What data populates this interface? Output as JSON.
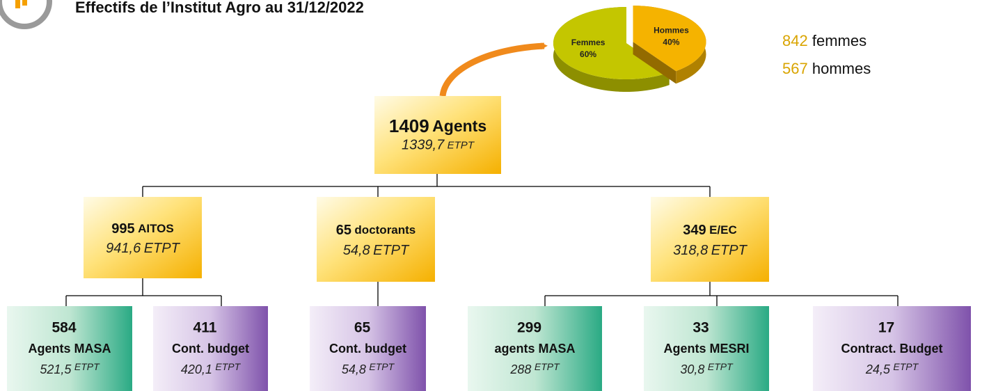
{
  "header": {
    "title": "Effectifs de l’Institut Agro au 31/12/2022"
  },
  "pie": {
    "slices": [
      {
        "label": "Femmes",
        "value": 60,
        "value_label": "60%",
        "color": "#c4c600"
      },
      {
        "label": "Hommes",
        "value": 40,
        "value_label": "40%",
        "color": "#f5b300"
      }
    ]
  },
  "gender": [
    {
      "count": "842",
      "label": "femmes"
    },
    {
      "count": "567",
      "label": "hommes"
    }
  ],
  "nodes": [
    {
      "count": "1409",
      "label": "Agents",
      "etpt": "1339,7",
      "unit": "ETPT"
    },
    {
      "count": "995",
      "label": "AITOS",
      "etpt": "941,6",
      "unit": "ETPT"
    },
    {
      "count": "65",
      "label": "doctorants",
      "etpt": "54,8",
      "unit": "ETPT"
    },
    {
      "count": "349",
      "label": "E/EC",
      "etpt": "318,8",
      "unit": "ETPT"
    },
    {
      "count": "584",
      "label": "Agents MASA",
      "etpt": "521,5",
      "unit": "ETPT"
    },
    {
      "count": "411",
      "label": "Cont. budget",
      "etpt": "420,1",
      "unit": "ETPT"
    },
    {
      "count": "65",
      "label": "Cont. budget",
      "etpt": "54,8",
      "unit": "ETPT"
    },
    {
      "count": "299",
      "label": "agents MASA",
      "etpt": "288",
      "unit": "ETPT"
    },
    {
      "count": "33",
      "label": "Agents MESRI",
      "etpt": "30,8",
      "unit": "ETPT"
    },
    {
      "count": "17",
      "label": "Contract. Budget",
      "etpt": "24,5",
      "unit": "ETPT"
    }
  ]
}
